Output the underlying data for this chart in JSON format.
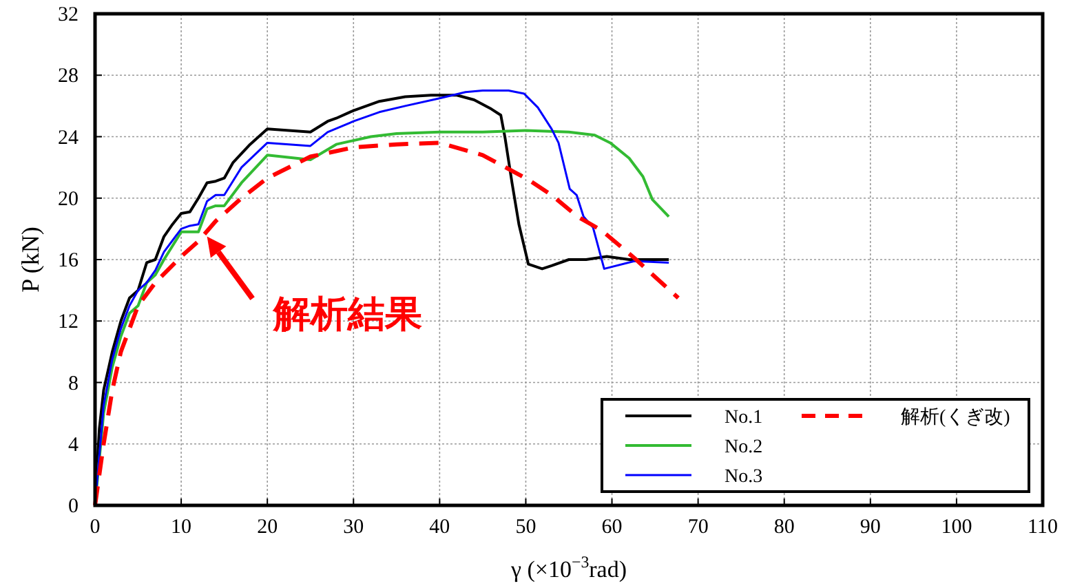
{
  "chart_data": {
    "type": "line",
    "xlabel": "γ (×10$^{−3}$rad)",
    "ylabel": "P (kN)",
    "xlim": [
      0,
      110
    ],
    "ylim": [
      0,
      32
    ],
    "xticks": [
      0,
      10,
      20,
      30,
      40,
      50,
      60,
      70,
      80,
      90,
      100,
      110
    ],
    "yticks": [
      0,
      4,
      8,
      12,
      16,
      20,
      24,
      28,
      32
    ],
    "grid": true,
    "legend": "bottom right",
    "annotations": [
      {
        "text": "解析結果",
        "x": 13,
        "y": 17.5
      }
    ],
    "series": [
      {
        "name": "No.1",
        "color": "#000000",
        "line_style": "solid",
        "x": [
          0,
          0.5,
          1,
          2,
          3,
          4,
          5,
          6,
          7,
          8,
          9,
          10,
          11,
          12,
          13,
          14,
          15,
          16,
          18,
          20,
          25,
          27,
          28,
          30,
          33,
          36,
          39,
          42,
          44,
          46,
          47.1,
          47.6,
          48.4,
          49.2,
          50.3,
          51.9,
          53,
          55,
          57,
          59.4,
          62,
          64,
          66.6
        ],
        "values": [
          0,
          5,
          7.5,
          10,
          12,
          13.5,
          14,
          15.8,
          16,
          17.5,
          18.3,
          19,
          19.1,
          20,
          21,
          21.1,
          21.3,
          22.3,
          23.5,
          24.5,
          24.3,
          25,
          25.2,
          25.7,
          26.3,
          26.6,
          26.7,
          26.7,
          26.4,
          25.8,
          25.4,
          23.9,
          21,
          18.3,
          15.7,
          15.4,
          15.6,
          16,
          16,
          16.2,
          16,
          16,
          16
        ]
      },
      {
        "name": "No.2",
        "color": "#33bb33",
        "line_style": "solid",
        "x": [
          0,
          1,
          2,
          3,
          4,
          5,
          6,
          7,
          8,
          10,
          11,
          12,
          13,
          14,
          15,
          17,
          20,
          25,
          28,
          32,
          35,
          40,
          45,
          50,
          55,
          58,
          59.8,
          62,
          63.6,
          64.7,
          66.6
        ],
        "values": [
          0,
          6,
          9,
          11,
          12.5,
          13,
          14.5,
          15,
          16,
          17.8,
          17.8,
          17.8,
          19.3,
          19.5,
          19.5,
          21,
          22.8,
          22.5,
          23.5,
          24,
          24.2,
          24.3,
          24.3,
          24.4,
          24.3,
          24.1,
          23.6,
          22.6,
          21.4,
          19.9,
          18.8
        ]
      },
      {
        "name": "No.3",
        "color": "#0000ff",
        "line_style": "solid",
        "x": [
          0,
          1,
          2,
          3,
          4,
          5,
          6,
          7,
          8,
          10,
          11,
          12,
          13,
          14,
          15,
          17,
          20,
          25,
          27,
          30,
          33,
          36,
          40,
          43,
          45,
          48,
          49.8,
          51.4,
          53,
          53.8,
          55.1,
          55.9,
          56.7,
          57.8,
          59.1,
          62.6,
          66.6
        ],
        "values": [
          0,
          6.5,
          9.5,
          11.5,
          13,
          14,
          14.5,
          15.3,
          16.5,
          18,
          18.2,
          18.3,
          19.8,
          20.2,
          20.2,
          22,
          23.6,
          23.4,
          24.3,
          25,
          25.6,
          26,
          26.5,
          26.9,
          27,
          27,
          26.8,
          25.9,
          24.5,
          23.6,
          20.6,
          20.2,
          18.8,
          18.1,
          15.4,
          15.9,
          15.8
        ]
      },
      {
        "name": "解析(くぎ改)",
        "color": "#ff0000",
        "line_style": "dashed",
        "x": [
          0,
          1,
          2,
          3,
          4,
          5,
          7,
          10,
          12,
          14,
          17,
          20,
          25,
          30,
          35,
          40,
          45,
          50.3,
          53,
          56,
          58.8,
          62.6,
          67.7
        ],
        "values": [
          0,
          4,
          7.5,
          10,
          11.5,
          13,
          14.5,
          16.2,
          17.2,
          18.5,
          20,
          21.3,
          22.7,
          23.3,
          23.5,
          23.6,
          22.8,
          21.2,
          20.2,
          18.8,
          17.9,
          16.1,
          13.5
        ]
      }
    ]
  }
}
